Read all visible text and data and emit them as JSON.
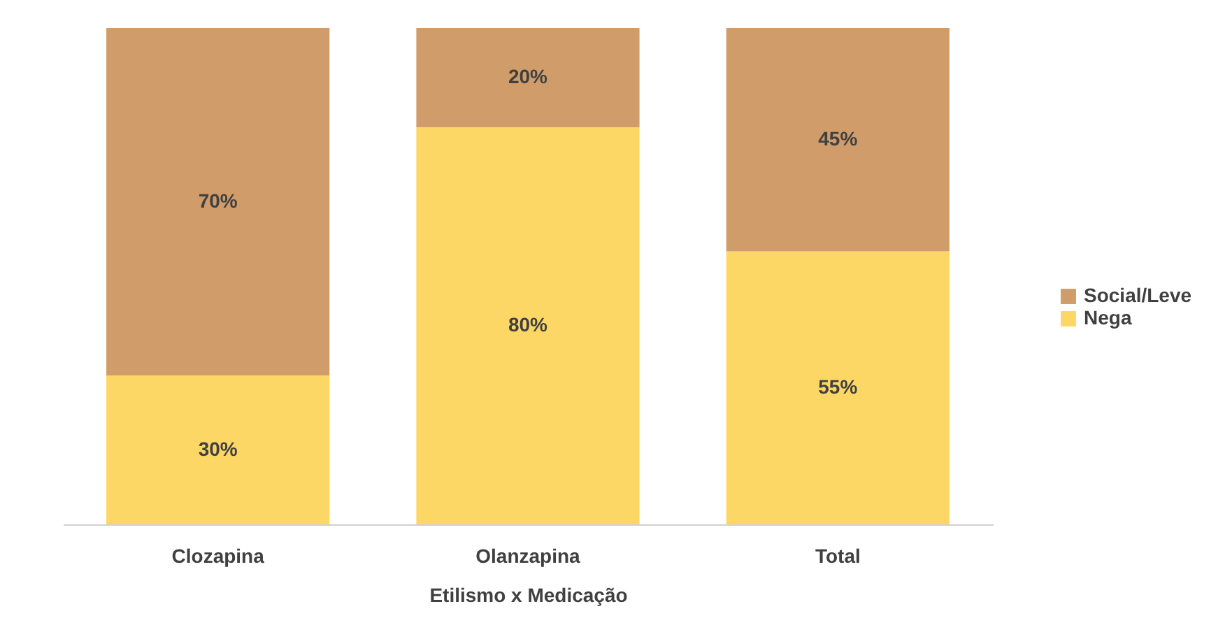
{
  "chart_data": {
    "type": "bar",
    "stacked": true,
    "xlabel": "Etilismo x Medicação",
    "categories": [
      "Clozapina",
      "Olanzapina",
      "Total"
    ],
    "series": [
      {
        "name": "Nega",
        "color": "#fdd766",
        "values": [
          30,
          80,
          55
        ],
        "value_labels": [
          "30%",
          "80%",
          "55%"
        ]
      },
      {
        "name": "Social/Leve",
        "color": "#d09c6a",
        "values": [
          70,
          20,
          45
        ],
        "value_labels": [
          "70%",
          "20%",
          "45%"
        ]
      }
    ],
    "ylim": [
      0,
      100
    ],
    "tick_labels": "x",
    "legend": "right",
    "grid": false
  }
}
